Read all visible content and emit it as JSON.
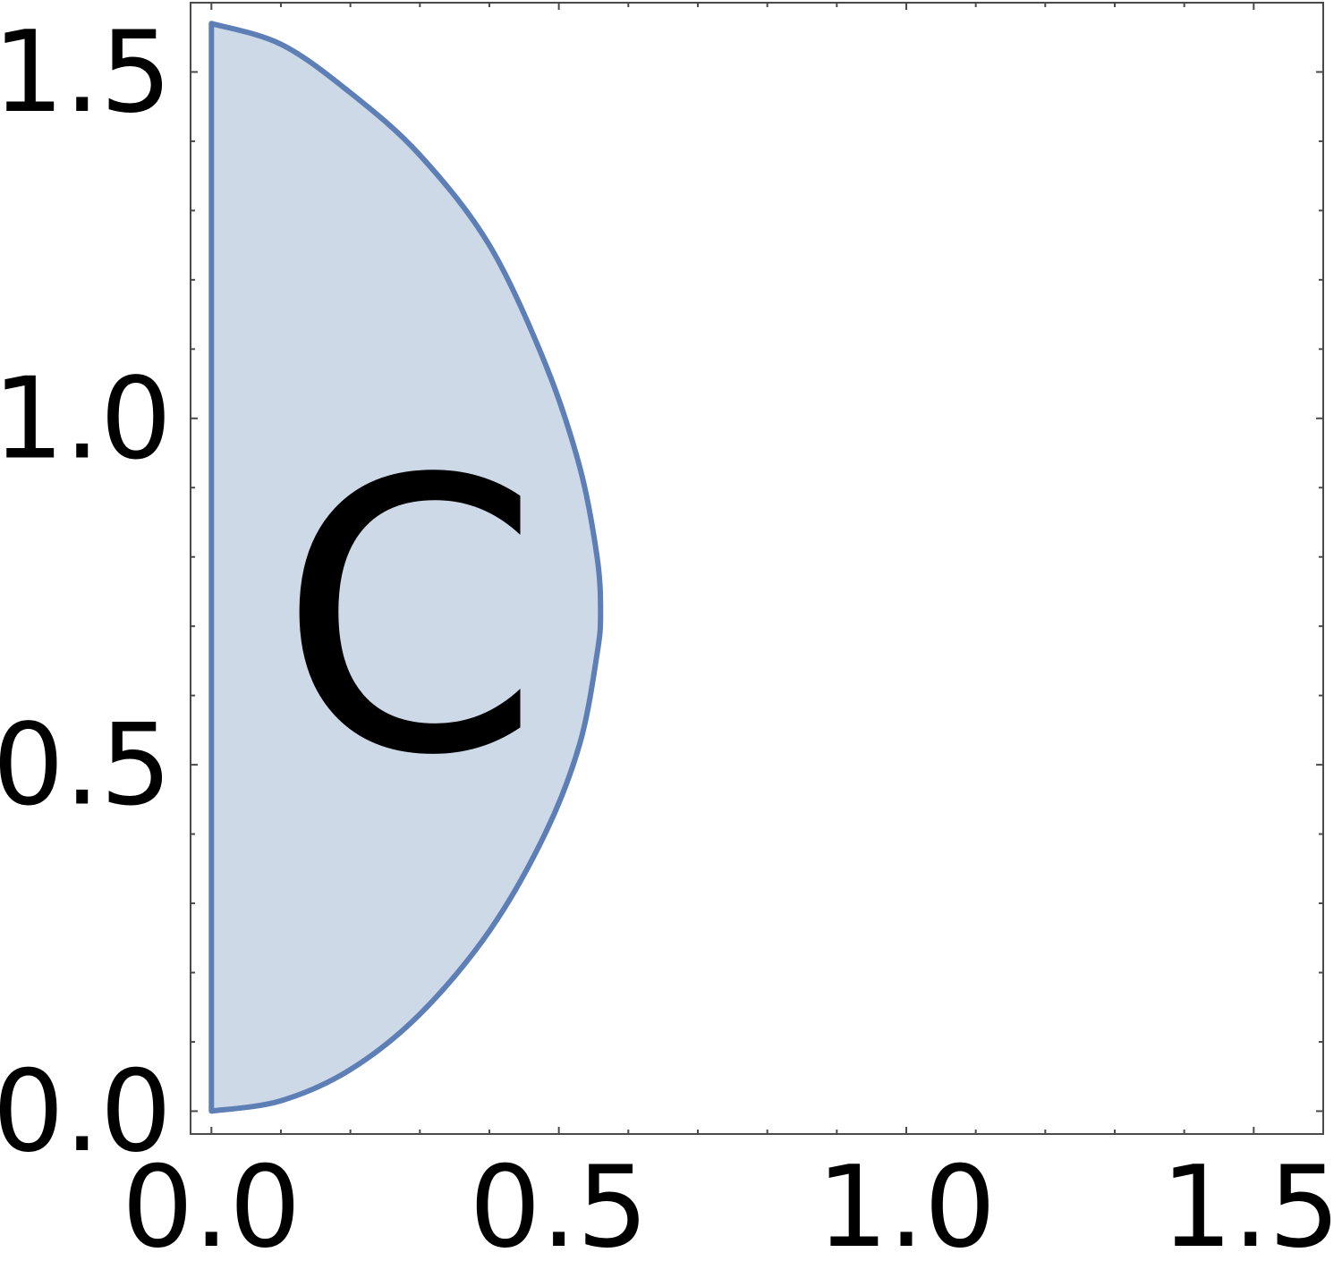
{
  "chart_data": {
    "type": "area",
    "xlim": [
      -0.03,
      1.6
    ],
    "ylim": [
      -0.033,
      1.6
    ],
    "x_ticks": [
      {
        "value": 0.0,
        "label": "0.0"
      },
      {
        "value": 0.5,
        "label": "0.5"
      },
      {
        "value": 1.0,
        "label": "1.0"
      },
      {
        "value": 1.5,
        "label": "1.5"
      }
    ],
    "y_ticks": [
      {
        "value": 0.0,
        "label": "0.0"
      },
      {
        "value": 0.5,
        "label": "0.5"
      },
      {
        "value": 1.0,
        "label": "1.0"
      },
      {
        "value": 1.5,
        "label": "1.5"
      }
    ],
    "minor_tick_step": 0.1,
    "grid": false,
    "region": {
      "label": "C",
      "label_x": 0.285,
      "label_y": 0.71,
      "fill_color": "#cdd9e7",
      "stroke_color": "#5d7fb5",
      "boundary": [
        [
          0.0,
          0.0
        ],
        [
          0.1,
          0.015
        ],
        [
          0.2,
          0.06
        ],
        [
          0.3,
          0.14
        ],
        [
          0.4,
          0.26
        ],
        [
          0.48,
          0.4
        ],
        [
          0.53,
          0.53
        ],
        [
          0.555,
          0.66
        ],
        [
          0.56,
          0.72
        ],
        [
          0.555,
          0.8
        ],
        [
          0.53,
          0.93
        ],
        [
          0.48,
          1.08
        ],
        [
          0.4,
          1.25
        ],
        [
          0.3,
          1.38
        ],
        [
          0.2,
          1.47
        ],
        [
          0.1,
          1.54
        ],
        [
          0.0,
          1.57
        ]
      ]
    }
  }
}
